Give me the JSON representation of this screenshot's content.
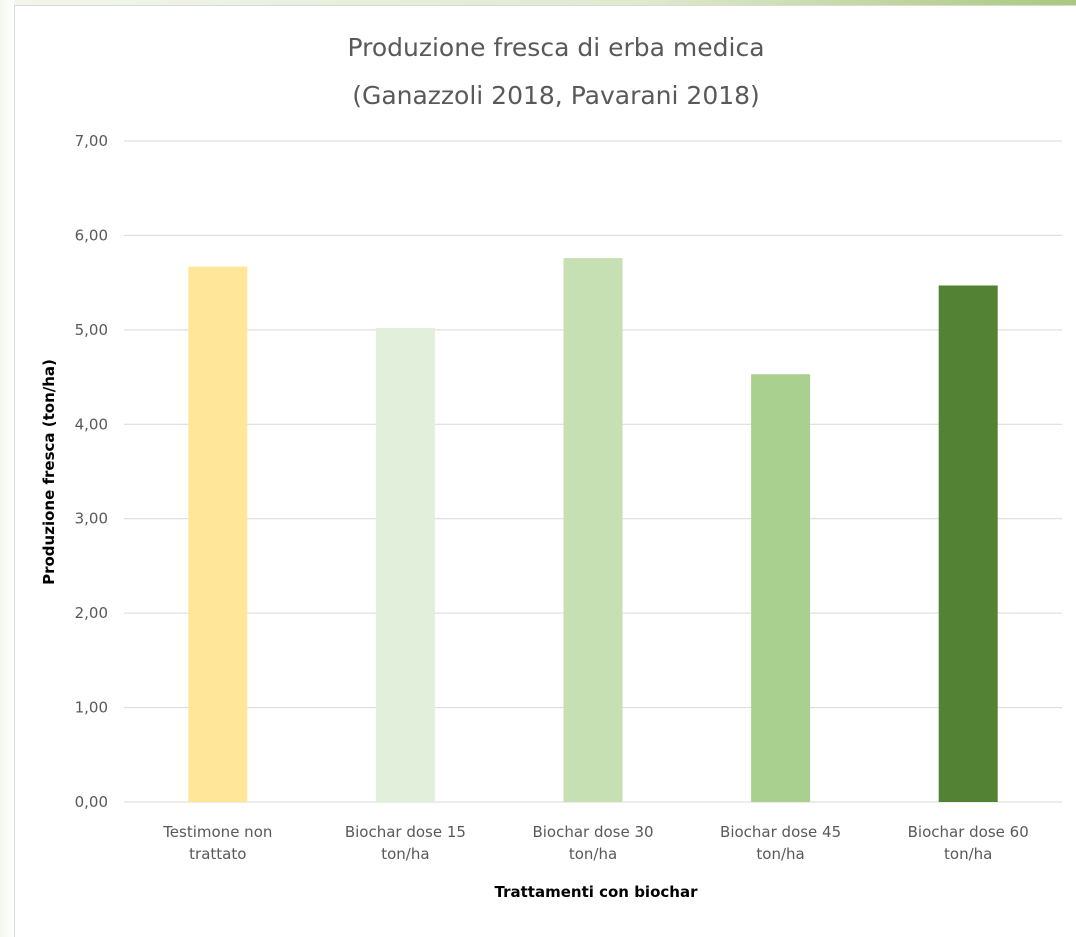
{
  "chart_data": {
    "type": "bar",
    "title": "Produzione fresca di erba medica",
    "subtitle": "(Ganazzoli 2018, Pavarani 2018)",
    "xlabel": "Trattamenti con biochar",
    "ylabel": "Produzione fresca (ton/ha)",
    "ylim": [
      0,
      7
    ],
    "grid": true,
    "legend": "none",
    "y_ticks": [
      0,
      1,
      2,
      3,
      4,
      5,
      6,
      7
    ],
    "y_tick_labels": [
      "0,00",
      "1,00",
      "2,00",
      "3,00",
      "4,00",
      "5,00",
      "6,00",
      "7,00"
    ],
    "categories": [
      [
        "Testimone non",
        "trattato"
      ],
      [
        "Biochar dose 15",
        "ton/ha"
      ],
      [
        "Biochar dose 30",
        "ton/ha"
      ],
      [
        "Biochar dose 45",
        "ton/ha"
      ],
      [
        "Biochar dose 60",
        "ton/ha"
      ]
    ],
    "values": [
      5.67,
      5.02,
      5.76,
      4.53,
      5.47
    ],
    "bar_colors": [
      "#ffe699",
      "#e2efda",
      "#c6e0b4",
      "#a9d08e",
      "#548235"
    ]
  },
  "colors": {
    "gridline": "#d9d9d9",
    "axis_text": "#595959",
    "axis_title": "#000000"
  }
}
